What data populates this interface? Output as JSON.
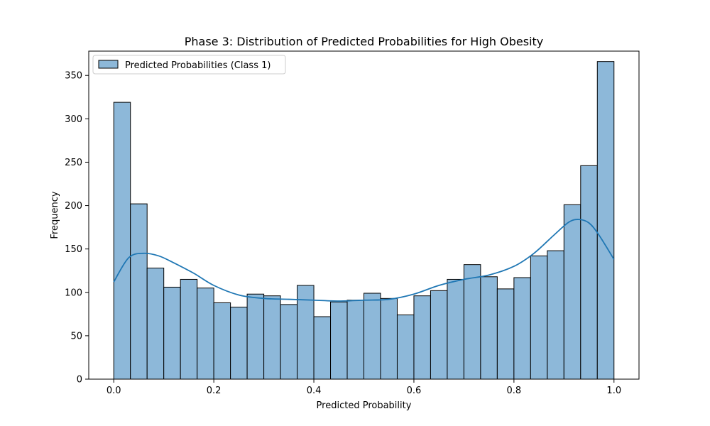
{
  "chart_data": {
    "type": "bar",
    "title": "Phase 3: Distribution of Predicted Probabilities for High Obesity",
    "xlabel": "Predicted Probability",
    "ylabel": "Frequency",
    "xlim": [
      -0.05,
      1.05
    ],
    "ylim": [
      0,
      378
    ],
    "bin_start": 0.0,
    "bin_end": 1.0,
    "xticks": [
      0.0,
      0.2,
      0.4,
      0.6,
      0.8,
      1.0
    ],
    "xtick_labels": [
      "0.0",
      "0.2",
      "0.4",
      "0.6",
      "0.8",
      "1.0"
    ],
    "yticks": [
      0,
      50,
      100,
      150,
      200,
      250,
      300,
      350
    ],
    "ytick_labels": [
      "0",
      "50",
      "100",
      "150",
      "200",
      "250",
      "300",
      "350"
    ],
    "values": [
      319,
      202,
      128,
      106,
      115,
      105,
      88,
      83,
      98,
      96,
      86,
      108,
      72,
      89,
      91,
      99,
      93,
      74,
      96,
      102,
      115,
      132,
      118,
      104,
      117,
      142,
      148,
      201,
      246,
      366
    ],
    "kde": {
      "x": [
        0.0,
        0.03,
        0.06,
        0.09,
        0.12,
        0.16,
        0.2,
        0.25,
        0.3,
        0.35,
        0.4,
        0.45,
        0.5,
        0.55,
        0.6,
        0.65,
        0.7,
        0.75,
        0.8,
        0.84,
        0.88,
        0.91,
        0.93,
        0.95,
        0.97,
        1.0
      ],
      "y": [
        112,
        140,
        145,
        142,
        134,
        122,
        108,
        97,
        93,
        92,
        91,
        90,
        91,
        92,
        98,
        108,
        115,
        120,
        130,
        145,
        166,
        181,
        184,
        180,
        166,
        138
      ]
    },
    "legend": {
      "placement": "top-left",
      "label": "Predicted Probabilities (Class 1)"
    },
    "colors": {
      "bar_fill": "#8db8d9",
      "bar_edge": "#000000",
      "kde_line": "#1f77b4"
    },
    "grid": false
  }
}
